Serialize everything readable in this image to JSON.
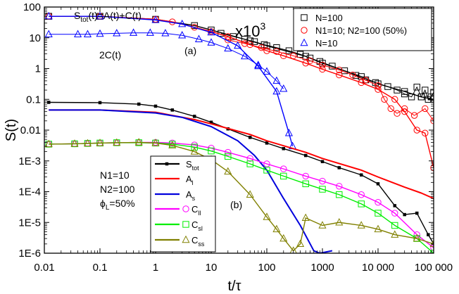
{
  "chart_data": {
    "type": "scatter",
    "xlabel": "t/τ",
    "ylabel": "S(t)",
    "x_scale": "log",
    "y_scale": "log",
    "xlim": [
      0.01,
      100000
    ],
    "ylim": [
      1e-06,
      100
    ],
    "x_ticks": [
      "0.01",
      "0.1",
      "1",
      "10",
      "100",
      "1000",
      "10 000",
      "100 000"
    ],
    "y_ticks": [
      "1E-6",
      "1E-5",
      "1E-4",
      "1E-3",
      "0.01",
      "0.1",
      "1",
      "10",
      "100"
    ],
    "grid": false,
    "annotations": {
      "stot_eq": "S",
      "stot_sub": "tot",
      "stot_rest": "(t)=A(t)+C(t)",
      "two_c": "2C(t)",
      "panel_a": "(a)",
      "panel_b": "(b)",
      "x10_base": "x10",
      "x10_exp": "3",
      "params_n1": "N1=10",
      "params_n2": "N2=100",
      "params_phi_sym": "ϕ",
      "params_phi_sub": "L",
      "params_phi_rest": "=50%"
    },
    "legend_a": {
      "placement": "top-right",
      "entries": [
        {
          "label": "N=100",
          "color": "#000000",
          "marker": "square"
        },
        {
          "label": "N1=10; N2=100 (50%)",
          "color": "#ff0000",
          "marker": "circle"
        },
        {
          "label": "N=10",
          "color": "#0000ff",
          "marker": "triangle"
        }
      ]
    },
    "legend_b": {
      "placement": "bottom-center",
      "entries": [
        {
          "sym": "S",
          "sub": "tot",
          "color": "#000000",
          "marker": "small-square"
        },
        {
          "sym": "A",
          "sub": "l",
          "color": "#ff0000",
          "marker": "none"
        },
        {
          "sym": "A",
          "sub": "s",
          "color": "#0000dd",
          "marker": "none"
        },
        {
          "sym": "C",
          "sub": "ll",
          "color": "#ff00ff",
          "marker": "circle"
        },
        {
          "sym": "C",
          "sub": "sl",
          "color": "#00ee00",
          "marker": "square"
        },
        {
          "sym": "C",
          "sub": "ss",
          "color": "#808000",
          "marker": "triangle"
        }
      ]
    },
    "series": [
      {
        "panel": "a",
        "name": "N=100",
        "color": "#000000",
        "marker": "square",
        "x": [
          0.012,
          0.1,
          1,
          5,
          10,
          50,
          100,
          500,
          1000,
          5000,
          10000,
          30000,
          60000,
          100000
        ],
        "y": [
          50,
          50,
          40,
          25,
          18,
          8,
          5.5,
          2.5,
          1.5,
          0.55,
          0.32,
          0.18,
          0.12,
          0.1
        ]
      },
      {
        "panel": "a",
        "name": "N=100 markers (x10^3)",
        "color": "#000000",
        "marker": "square",
        "x": [
          15,
          25,
          40,
          60,
          90,
          150,
          250,
          400,
          600,
          900,
          1500,
          2500,
          4000,
          6000,
          9000,
          15000,
          22000,
          30000,
          40000,
          50000,
          60000,
          70000,
          80000,
          90000,
          100000
        ],
        "y": [
          14,
          11,
          9,
          7.5,
          6,
          4.8,
          3.8,
          2.9,
          2.2,
          1.7,
          1.2,
          0.85,
          0.6,
          0.43,
          0.35,
          0.26,
          0.2,
          0.15,
          0.12,
          0.25,
          0.12,
          0.2,
          0.1,
          0.12,
          0.17
        ]
      },
      {
        "panel": "a",
        "name": "N1=10; N2=100 (50%)",
        "color": "#ff0000",
        "marker": "circle",
        "x": [
          0.012,
          0.1,
          1,
          2,
          5,
          10,
          20,
          50,
          100,
          200,
          500,
          1000,
          2000,
          5000,
          10000,
          20000,
          30000,
          50000,
          70000,
          100000
        ],
        "y": [
          50,
          50,
          40,
          33,
          22,
          16,
          11,
          6,
          3.8,
          2.6,
          1.5,
          0.95,
          0.62,
          0.35,
          0.21,
          0.1,
          0.04,
          0.01,
          0.008,
          0.0006
        ]
      },
      {
        "panel": "a",
        "name": "N1=10; N2=100 markers",
        "color": "#ff0000",
        "marker": "circle",
        "x": [
          20,
          40,
          80,
          150,
          300,
          600,
          1000,
          2000,
          3500,
          6000,
          10000,
          13000,
          17000,
          22000,
          30000,
          45000,
          70000,
          100000
        ],
        "y": [
          8.5,
          6.5,
          4.8,
          3.6,
          2.6,
          1.8,
          1.3,
          0.9,
          0.62,
          0.42,
          0.28,
          0.1,
          0.05,
          0.035,
          0.05,
          0.03,
          0.05,
          0.02
        ]
      },
      {
        "panel": "a",
        "name": "N=10",
        "color": "#0000ff",
        "marker": "triangle",
        "x": [
          0.012,
          0.1,
          1,
          3,
          10,
          30,
          70,
          150,
          250,
          290
        ],
        "y": [
          50,
          50,
          38,
          28,
          15,
          5.5,
          1.2,
          0.18,
          0.008,
          0.003
        ]
      },
      {
        "panel": "a",
        "name": "N=10 markers (2C)",
        "color": "#0000ff",
        "marker": "triangle",
        "x": [
          0.012,
          0.04,
          0.06,
          0.1,
          0.2,
          0.4,
          0.8,
          1.5,
          3,
          6,
          10,
          20,
          40,
          70,
          100,
          150,
          200
        ],
        "y": [
          13,
          13,
          13,
          13.5,
          14,
          14.5,
          14.5,
          14,
          12,
          9,
          7,
          4.5,
          2.5,
          1.3,
          0.8,
          0.4,
          0.22
        ]
      },
      {
        "panel": "b",
        "name": "Stot",
        "color": "#000000",
        "marker": "small-square",
        "x": [
          0.012,
          0.1,
          0.5,
          1,
          2,
          5,
          10,
          20,
          50,
          100,
          200,
          500,
          1000,
          2000,
          5000,
          10000,
          20000,
          30000,
          50000,
          80000,
          100000
        ],
        "y": [
          0.08,
          0.078,
          0.07,
          0.06,
          0.045,
          0.028,
          0.018,
          0.011,
          0.0058,
          0.0038,
          0.0025,
          0.0015,
          0.00095,
          0.0006,
          0.00035,
          0.00018,
          3.5e-05,
          1.8e-05,
          2e-05,
          4e-06,
          2e-06
        ]
      },
      {
        "panel": "b",
        "name": "Al",
        "color": "#ff0000",
        "marker": "none",
        "x": [
          0.012,
          0.1,
          1,
          5,
          10,
          50,
          100,
          500,
          1000,
          5000,
          10000,
          30000,
          60000,
          100000
        ],
        "y": [
          0.045,
          0.045,
          0.038,
          0.022,
          0.016,
          0.0072,
          0.0045,
          0.0019,
          0.0012,
          0.0005,
          0.0003,
          0.00014,
          9e-05,
          6e-05
        ]
      },
      {
        "panel": "b",
        "name": "As",
        "color": "#0000dd",
        "marker": "none",
        "x": [
          0.012,
          0.1,
          1,
          3,
          10,
          30,
          60,
          100,
          200,
          400,
          700,
          900,
          1500
        ],
        "y": [
          0.045,
          0.045,
          0.036,
          0.026,
          0.013,
          0.0045,
          0.0015,
          0.0005,
          6e-05,
          8e-06,
          1.2e-06,
          1e-06,
          1.2e-06
        ]
      },
      {
        "panel": "b",
        "name": "Cll",
        "color": "#ff00ff",
        "marker": "circle",
        "x": [
          0.012,
          0.035,
          0.06,
          0.1,
          0.2,
          0.5,
          1,
          2,
          5,
          10,
          20,
          50,
          100,
          200,
          500,
          1000,
          2000,
          5000,
          10000,
          20000,
          50000,
          100000
        ],
        "y": [
          0.0035,
          0.0036,
          0.0037,
          0.0038,
          0.0039,
          0.004,
          0.004,
          0.0038,
          0.0033,
          0.0026,
          0.0019,
          0.0012,
          0.0008,
          0.00055,
          0.00032,
          0.00022,
          0.00015,
          8e-05,
          4.5e-05,
          2e-05,
          4e-06,
          1.5e-06
        ]
      },
      {
        "panel": "b",
        "name": "Csl",
        "color": "#00ee00",
        "marker": "square",
        "x": [
          0.012,
          0.035,
          0.06,
          0.1,
          0.2,
          0.5,
          1,
          2,
          5,
          10,
          20,
          50,
          100,
          200,
          500,
          1000,
          2000,
          5000,
          10000,
          20000,
          50000,
          100000
        ],
        "y": [
          0.0035,
          0.0036,
          0.0037,
          0.0038,
          0.0039,
          0.0039,
          0.0038,
          0.0035,
          0.0028,
          0.0021,
          0.0014,
          0.0008,
          0.0005,
          0.00032,
          0.00018,
          0.00012,
          8e-05,
          4e-05,
          2e-05,
          8e-06,
          3e-06,
          1e-06
        ]
      },
      {
        "panel": "b",
        "name": "Css",
        "color": "#808000",
        "marker": "triangle",
        "x": [
          0.012,
          0.035,
          0.06,
          0.1,
          0.2,
          0.5,
          1,
          2,
          5,
          10,
          20,
          50,
          100,
          150,
          200,
          300,
          400,
          500,
          1000,
          2000,
          5000,
          10000,
          20000,
          50000,
          100000
        ],
        "y": [
          0.0035,
          0.0036,
          0.0037,
          0.0038,
          0.0039,
          0.004,
          0.0038,
          0.0032,
          0.002,
          0.0011,
          0.00045,
          8e-05,
          1.5e-05,
          6e-06,
          3e-06,
          1.2e-06,
          2e-06,
          1.4e-05,
          8e-06,
          1e-05,
          8e-06,
          6e-06,
          4e-06,
          3e-06,
          2e-06
        ]
      }
    ]
  }
}
